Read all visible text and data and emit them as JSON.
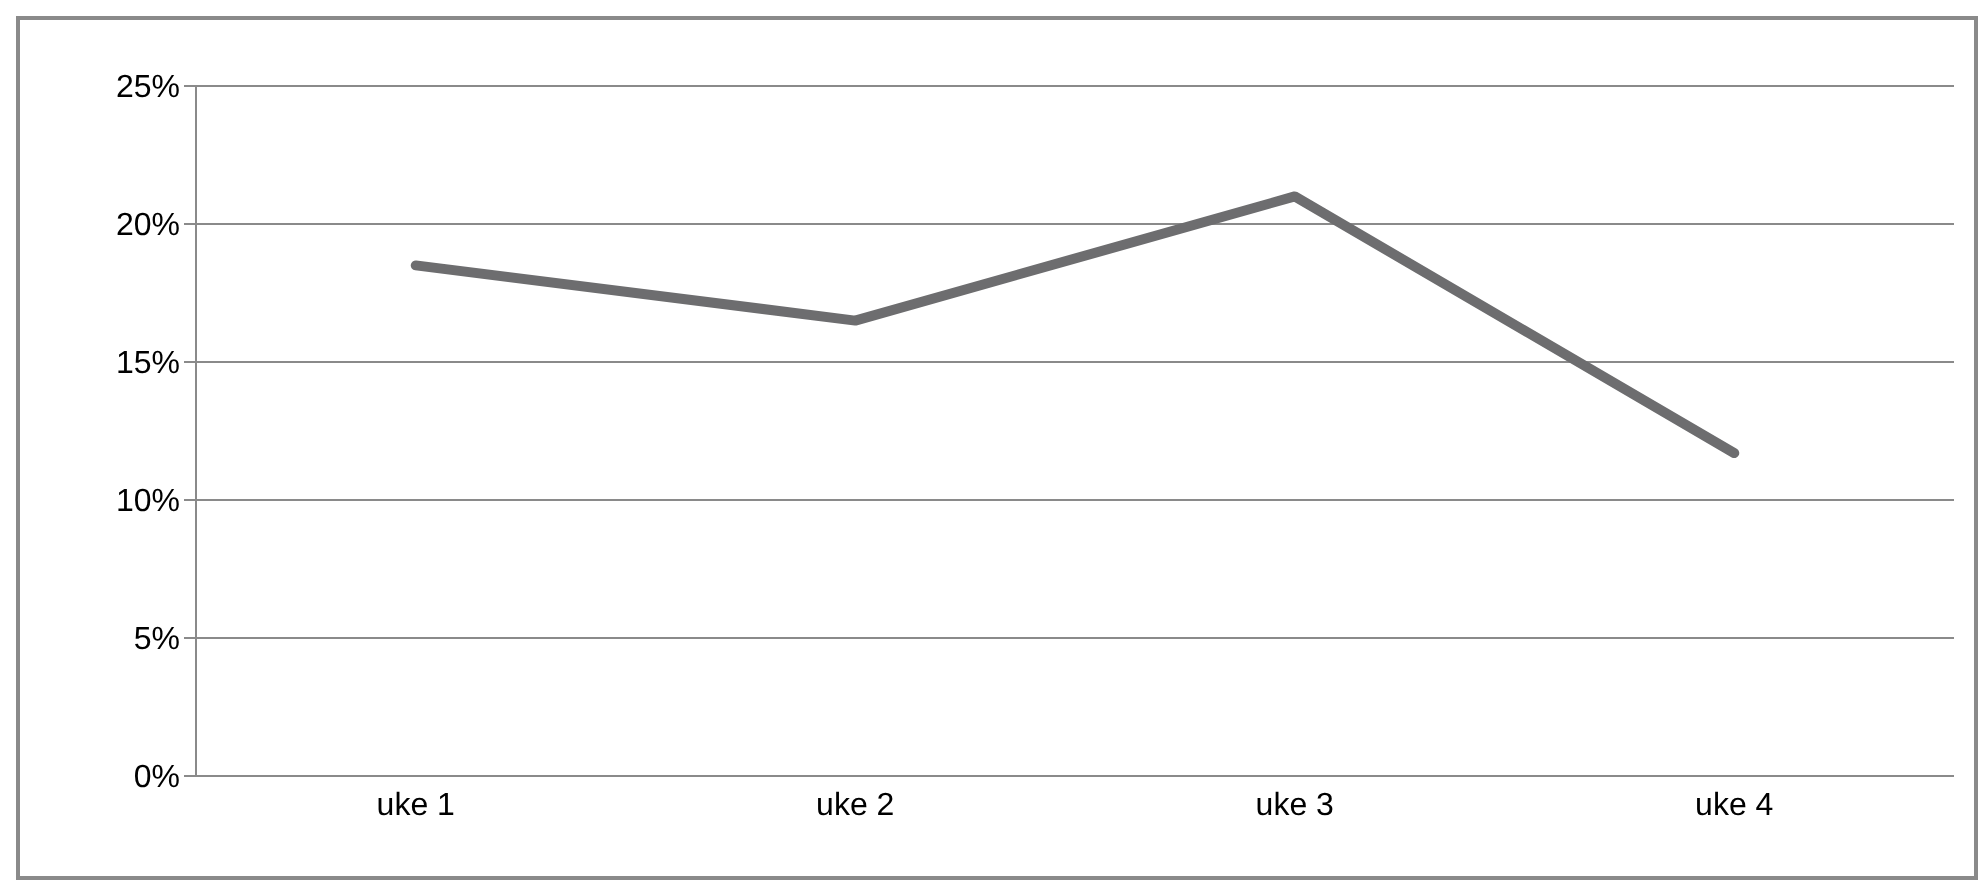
{
  "chart_data": {
    "type": "line",
    "categories": [
      "uke 1",
      "uke 2",
      "uke 3",
      "uke 4"
    ],
    "series": [
      {
        "color": "#6d6d6f",
        "values": [
          18.5,
          16.5,
          21.0,
          11.7
        ]
      }
    ],
    "ylim": [
      0,
      25
    ],
    "yticks": [
      {
        "value": 0,
        "label": "0%"
      },
      {
        "value": 5,
        "label": "5%"
      },
      {
        "value": 10,
        "label": "10%"
      },
      {
        "value": 15,
        "label": "15%"
      },
      {
        "value": 20,
        "label": "20%"
      },
      {
        "value": 25,
        "label": "25%"
      }
    ],
    "grid": "y",
    "legend": false,
    "marker": "none",
    "line_style": "solid"
  }
}
